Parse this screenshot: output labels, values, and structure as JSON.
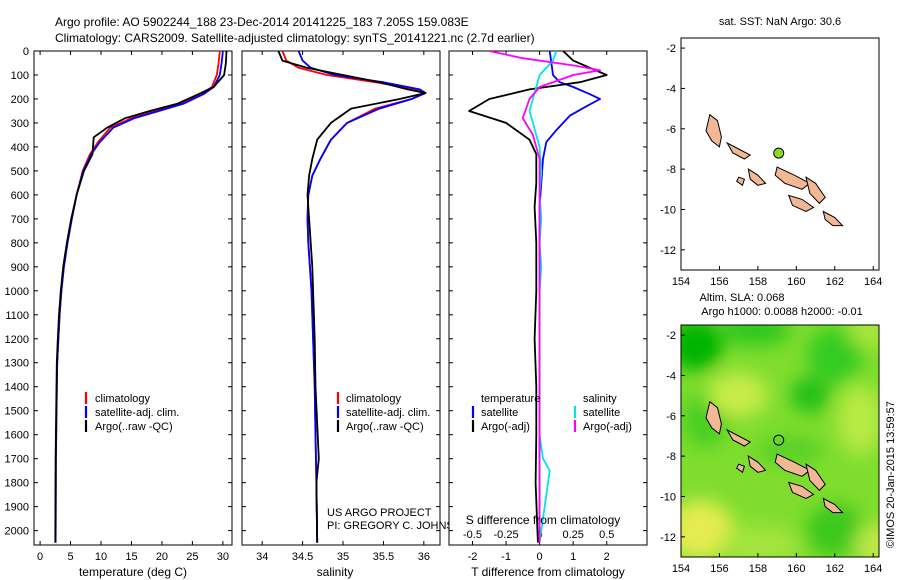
{
  "title": {
    "line1": "Argo profile: AO 5902244_188 23-Dec-2014 20141225_183 7.205S 159.083E",
    "line2": "Climatology: CARS2009. Satellite-adjusted climatology: synTS_20141221.nc (2.7d earlier)"
  },
  "credit": {
    "project": "US ARGO PROJECT",
    "pi": "PI: GREGORY C. JOHNSON",
    "stamp": "©IMOS 20-Jan-2015 13:59:57"
  },
  "colors": {
    "climatology": "#ff0000",
    "satellite": "#0000ff",
    "argo": "#000000",
    "salinity_satellite": "#00e5e5",
    "salinity_argo": "#ff00ff",
    "land": "#f2b896",
    "marker": "#88dd22"
  },
  "chart_data": [
    {
      "type": "line",
      "name": "temperature-profile",
      "xlabel": "temperature (deg C)",
      "xlim": [
        -1,
        31.5
      ],
      "xticks": [
        0,
        5,
        10,
        15,
        20,
        25,
        30
      ],
      "ylim": [
        2060,
        0
      ],
      "yticks": [
        0,
        100,
        200,
        300,
        400,
        500,
        600,
        700,
        800,
        900,
        1000,
        1100,
        1200,
        1300,
        1400,
        1500,
        1600,
        1700,
        1800,
        1900,
        2000
      ],
      "legend": [
        "climatology",
        "satellite-adj. clim.",
        "Argo(..raw -QC)"
      ],
      "legend_position": "lower-center",
      "series": [
        {
          "name": "climatology",
          "color": "#ff0000",
          "x": [
            29.5,
            29.3,
            29.0,
            28.2,
            26.5,
            23.0,
            19.0,
            15.0,
            11.5,
            9.5,
            8.2,
            7.0,
            6.0,
            5.2,
            4.5,
            3.9,
            3.5,
            3.2,
            3.0,
            2.8,
            2.7,
            2.6,
            2.55
          ],
          "y": [
            0,
            50,
            100,
            150,
            180,
            220,
            250,
            280,
            320,
            380,
            430,
            500,
            600,
            700,
            800,
            900,
            1000,
            1100,
            1200,
            1300,
            1500,
            1700,
            2050
          ]
        },
        {
          "name": "satellite",
          "color": "#0000ff",
          "x": [
            30.0,
            29.8,
            29.5,
            28.5,
            26.8,
            23.5,
            19.5,
            15.5,
            12.0,
            9.8,
            8.4,
            7.1,
            6.0,
            5.2,
            4.5,
            3.9,
            3.5,
            3.2,
            3.0,
            2.8,
            2.7,
            2.6,
            2.55
          ],
          "y": [
            0,
            50,
            100,
            150,
            180,
            220,
            250,
            280,
            320,
            380,
            430,
            500,
            600,
            700,
            800,
            900,
            1000,
            1100,
            1200,
            1300,
            1500,
            1700,
            2050
          ]
        },
        {
          "name": "argo",
          "color": "#000000",
          "x": [
            30.6,
            30.5,
            30.2,
            28.5,
            26.0,
            22.5,
            18.0,
            14.0,
            11.0,
            8.8,
            8.6,
            7.2,
            6.0,
            5.1,
            4.4,
            3.8,
            3.4,
            3.1,
            2.9,
            2.75,
            2.65,
            2.55,
            2.5
          ],
          "y": [
            0,
            50,
            100,
            150,
            180,
            220,
            250,
            280,
            320,
            360,
            430,
            500,
            600,
            700,
            800,
            900,
            1000,
            1100,
            1200,
            1300,
            1500,
            1700,
            2050
          ]
        }
      ]
    },
    {
      "type": "line",
      "name": "salinity-profile",
      "xlabel": "salinity",
      "xlim": [
        33.75,
        36.2
      ],
      "xticks": [
        34,
        34.5,
        35,
        35.5,
        36
      ],
      "ylim": [
        2060,
        0
      ],
      "legend": [
        "climatology",
        "satellite-adj. clim.",
        "Argo(..raw -QC)"
      ],
      "legend_position": "lower-center",
      "series": [
        {
          "name": "climatology",
          "color": "#ff0000",
          "x": [
            34.25,
            34.3,
            34.45,
            34.8,
            35.4,
            35.9,
            36.0,
            35.85,
            35.4,
            35.05,
            34.85,
            34.72,
            34.62,
            34.57,
            34.56,
            34.57,
            34.59,
            34.61,
            34.63,
            34.65,
            34.66,
            34.67,
            34.68
          ],
          "y": [
            0,
            40,
            70,
            100,
            130,
            160,
            175,
            200,
            240,
            300,
            370,
            450,
            520,
            600,
            700,
            800,
            900,
            1000,
            1200,
            1400,
            1600,
            1800,
            2050
          ]
        },
        {
          "name": "satellite",
          "color": "#0000ff",
          "x": [
            34.45,
            34.5,
            34.6,
            34.9,
            35.5,
            35.95,
            36.02,
            35.85,
            35.45,
            35.05,
            34.85,
            34.72,
            34.62,
            34.57,
            34.56,
            34.57,
            34.59,
            34.61,
            34.63,
            34.65,
            34.66,
            34.67,
            34.68
          ],
          "y": [
            0,
            40,
            70,
            100,
            130,
            160,
            175,
            200,
            240,
            300,
            370,
            450,
            520,
            600,
            700,
            800,
            900,
            1000,
            1200,
            1400,
            1600,
            1800,
            2050
          ]
        },
        {
          "name": "argo",
          "color": "#000000",
          "x": [
            34.2,
            34.25,
            34.55,
            35.0,
            35.45,
            35.8,
            36.02,
            35.7,
            35.1,
            34.85,
            34.68,
            34.62,
            34.58,
            34.56,
            34.58,
            34.6,
            34.62,
            34.63,
            34.65,
            34.66,
            34.7,
            34.67,
            34.68
          ],
          "y": [
            0,
            40,
            70,
            100,
            130,
            160,
            175,
            200,
            240,
            300,
            370,
            450,
            520,
            600,
            700,
            800,
            900,
            1000,
            1200,
            1400,
            1700,
            1800,
            2050
          ]
        }
      ]
    },
    {
      "type": "line",
      "name": "difference-profile",
      "xlabel": "T difference from climatology",
      "xlabel2": "S difference from climatology",
      "xlim": [
        -2.7,
        3.2
      ],
      "xticks": [
        -2,
        -1,
        0,
        1,
        2
      ],
      "xticks_s_labels": [
        "-0.5",
        "-0.25",
        "0",
        "0.25",
        "0.5"
      ],
      "ylim": [
        2060,
        0
      ],
      "legend": {
        "temperature": "temperature",
        "salinity": "salinity",
        "satellite": "satellite",
        "argo": "Argo(-adj)"
      },
      "legend_position": "lower-center",
      "series": [
        {
          "name": "temperature satellite",
          "color": "#0000ff",
          "x": [
            0.3,
            0.35,
            0.4,
            0.6,
            1.0,
            1.5,
            1.8,
            1.4,
            0.9,
            0.5,
            0.2,
            0.1,
            0.05,
            0.0,
            0.0,
            0.0,
            0.0,
            0.0,
            0.0,
            0.0,
            0.0
          ],
          "y": [
            0,
            50,
            100,
            130,
            150,
            180,
            200,
            230,
            270,
            330,
            380,
            450,
            550,
            650,
            800,
            1000,
            1200,
            1400,
            1600,
            1800,
            2050
          ]
        },
        {
          "name": "temperature argo",
          "color": "#000000",
          "x": [
            0.7,
            1.0,
            1.5,
            2.0,
            1.2,
            -0.3,
            -1.5,
            -2.1,
            -1.0,
            -0.3,
            -0.1,
            -0.1,
            -0.1,
            -0.15,
            -0.1,
            -0.1,
            -0.15,
            -0.1,
            -0.1,
            -0.12,
            -0.05
          ],
          "y": [
            0,
            40,
            70,
            100,
            130,
            160,
            200,
            250,
            300,
            370,
            430,
            500,
            550,
            650,
            800,
            1000,
            1200,
            1400,
            1600,
            1800,
            2050
          ]
        },
        {
          "name": "salinity satellite",
          "color": "#00e5e5",
          "x": [
            0.5,
            0.4,
            0.2,
            0.0,
            -0.1,
            -0.2,
            -0.3,
            -0.2,
            0.0,
            0.05,
            0.0,
            0.05,
            0.0,
            0.05,
            0.0,
            0.0,
            0.0,
            0.0,
            0.1,
            0.3,
            0.0
          ],
          "y": [
            0,
            40,
            70,
            100,
            150,
            200,
            250,
            300,
            400,
            500,
            600,
            700,
            800,
            900,
            1000,
            1200,
            1400,
            1600,
            1700,
            1750,
            2050
          ]
        },
        {
          "name": "salinity argo",
          "color": "#ff00ff",
          "x": [
            -1.5,
            -0.5,
            1.0,
            1.8,
            1.0,
            0.0,
            -0.3,
            -0.5,
            -0.2,
            0.0,
            0.0,
            0.0,
            0.0,
            0.0,
            0.0,
            0.0,
            0.0,
            0.0,
            0.0
          ],
          "y": [
            0,
            30,
            60,
            80,
            100,
            150,
            200,
            280,
            350,
            450,
            550,
            700,
            900,
            1100,
            1300,
            1500,
            1700,
            1900,
            2050
          ]
        }
      ]
    },
    {
      "type": "map",
      "name": "sst-map",
      "title": "sat. SST: NaN  Argo: 30.6",
      "xlim": [
        154,
        164.3
      ],
      "ylim": [
        -13,
        -1.5
      ],
      "xticks": [
        154,
        156,
        158,
        160,
        162,
        164
      ],
      "yticks": [
        -2,
        -4,
        -6,
        -8,
        -10,
        -12
      ],
      "marker": {
        "lon": 159.083,
        "lat": -7.205
      }
    },
    {
      "type": "heatmap",
      "name": "sla-map",
      "title_line1": "Altim. SLA: 0.068",
      "title_line2": "Argo h1000: 0.0088  h2000: -0.01",
      "xlim": [
        154,
        164.3
      ],
      "ylim": [
        -13,
        -1.5
      ],
      "xticks": [
        154,
        156,
        158,
        160,
        162,
        164
      ],
      "yticks": [
        -2,
        -4,
        -6,
        -8,
        -10,
        -12
      ],
      "marker": {
        "lon": 159.083,
        "lat": -7.205
      }
    }
  ]
}
